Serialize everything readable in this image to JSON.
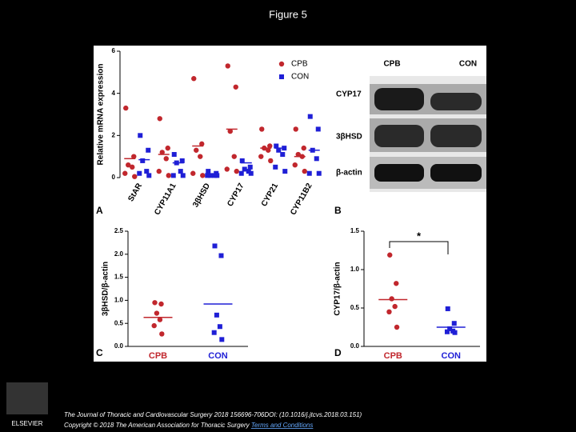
{
  "title": "Figure 5",
  "chart_data": [
    {
      "type": "dotplot",
      "panel": "A",
      "ylabel": "Relative mRNA expression",
      "categories": [
        "StAR",
        "CYP11A1",
        "3βHSD",
        "CYP17",
        "CYP21",
        "CYP11B2"
      ],
      "ylim": [
        0,
        6
      ],
      "yticks": [
        0,
        2,
        4,
        6
      ],
      "legend": "top-right",
      "series": [
        {
          "name": "CPB",
          "color": "#c1272d",
          "marker": "circle",
          "values": [
            [
              3.3,
              1.0,
              0.6,
              0.5,
              0.2,
              0.05
            ],
            [
              2.8,
              1.4,
              1.2,
              0.9,
              0.3,
              0.1
            ],
            [
              4.7,
              1.6,
              1.3,
              1.0,
              0.2,
              0.1
            ],
            [
              5.3,
              4.3,
              2.2,
              1.0,
              0.4,
              0.3
            ],
            [
              2.3,
              1.5,
              1.4,
              1.3,
              1.0,
              0.8
            ],
            [
              2.3,
              1.4,
              1.1,
              1.0,
              0.6,
              0.3
            ]
          ],
          "means": [
            0.9,
            1.1,
            1.5,
            2.3,
            1.4,
            1.0
          ]
        },
        {
          "name": "CON",
          "color": "#1f1fd6",
          "marker": "square",
          "values": [
            [
              2.0,
              1.3,
              0.8,
              0.3,
              0.2,
              0.1
            ],
            [
              1.1,
              0.8,
              0.7,
              0.3,
              0.1,
              0.1
            ],
            [
              0.3,
              0.2,
              0.1,
              0.1,
              0.1,
              0.1
            ],
            [
              0.8,
              0.5,
              0.4,
              0.3,
              0.2,
              0.2
            ],
            [
              1.5,
              1.4,
              1.3,
              1.1,
              0.5,
              0.3
            ],
            [
              2.9,
              2.3,
              1.3,
              0.9,
              0.2,
              0.2
            ]
          ],
          "means": [
            0.85,
            0.7,
            0.15,
            0.7,
            1.4,
            1.3
          ]
        }
      ]
    },
    {
      "type": "dotplot",
      "panel": "C",
      "ylabel": "3βHSD/β-actin",
      "categories": [
        "CPB",
        "CON"
      ],
      "colors": [
        "#c1272d",
        "#1f1fd6"
      ],
      "markers": [
        "circle",
        "square"
      ],
      "ylim": [
        0,
        2.5
      ],
      "yticks": [
        {
          "value": 0,
          "label": "0.0"
        },
        0.5,
        {
          "value": 1,
          "label": "1.0"
        },
        1.5,
        {
          "value": 2,
          "label": "2.0"
        },
        2.5
      ],
      "values": [
        [
          0.95,
          0.92,
          0.72,
          0.58,
          0.45,
          0.27
        ],
        [
          2.18,
          1.97,
          0.68,
          0.43,
          0.3,
          0.15
        ]
      ],
      "means": [
        0.63,
        0.92
      ]
    },
    {
      "type": "dotplot",
      "panel": "D",
      "ylabel": "CYP17/β-actin",
      "categories": [
        "CPB",
        "CON"
      ],
      "colors": [
        "#c1272d",
        "#1f1fd6"
      ],
      "markers": [
        "circle",
        "square"
      ],
      "ylim": [
        0,
        1.5
      ],
      "yticks": [
        {
          "value": 0,
          "label": "0.0"
        },
        0.5,
        {
          "value": 1,
          "label": "1.0"
        },
        1.5
      ],
      "values": [
        [
          1.19,
          0.82,
          0.62,
          0.52,
          0.45,
          0.25
        ],
        [
          0.49,
          0.3,
          0.23,
          0.2,
          0.19,
          0.18
        ]
      ],
      "means": [
        0.61,
        0.25
      ],
      "annotation": "*"
    }
  ],
  "blot": {
    "panel": "B",
    "columns": [
      "CPB",
      "CON"
    ],
    "rows": [
      "CYP17",
      "3βHSD",
      "β-actin"
    ]
  },
  "footer": {
    "journal": "The Journal of Thoracic and Cardiovascular Surgery 2018 156696-706DOI: (10.1016/j.jtcvs.2018.03.151)",
    "copyright": "Copyright © 2018 The American Association for Thoracic Surgery",
    "link": "Terms and Conditions",
    "logo": "ELSEVIER"
  }
}
